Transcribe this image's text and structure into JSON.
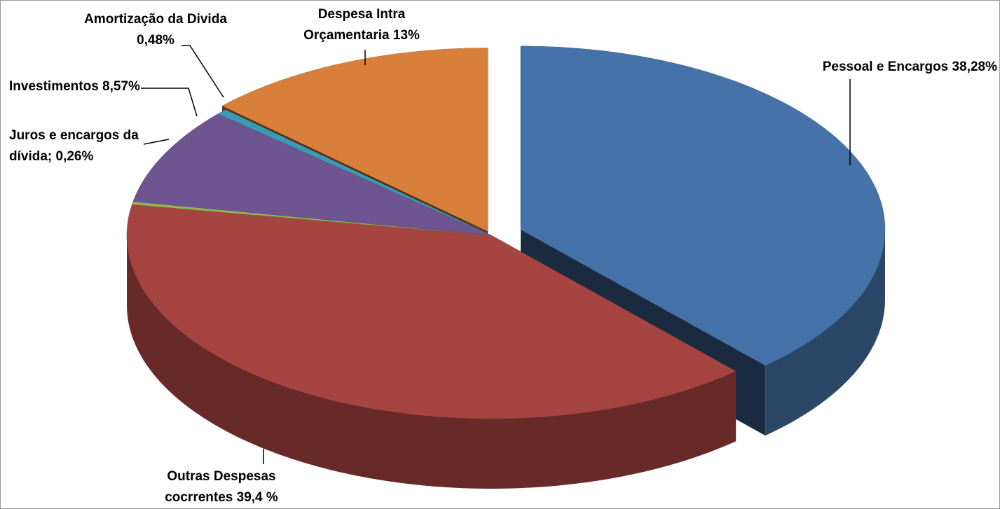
{
  "chart_data": {
    "type": "pie3d",
    "categories": [
      "Pessoal e Encargos",
      "Outras Despesas cocrrentes",
      "Juros e encargos da dívida;",
      "Investimentos",
      "Amortização da Divida",
      "Despesa Intra Orçamentaria"
    ],
    "values": [
      38.28,
      39.4,
      0.26,
      8.57,
      0.48,
      13
    ],
    "value_labels": [
      "38,28%",
      "39,4 %",
      "0,26%",
      "8,57%",
      "0,48%",
      "13%"
    ],
    "colors": [
      "#4572a8",
      "#a64441",
      "#93b558",
      "#6e5592",
      "#3a9bb5",
      "#d8803b"
    ]
  }
}
